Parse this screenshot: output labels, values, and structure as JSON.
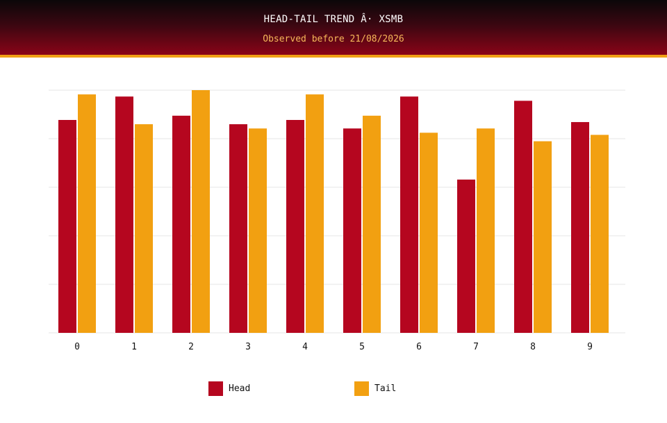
{
  "header": {
    "title": "HEAD-TAIL TREND Â· XSMB",
    "subtitle": "Observed before 21/08/2026"
  },
  "colors": {
    "head": "#b5061f",
    "tail": "#f2a011",
    "grid": "#e6e6e6",
    "header_accent": "#f0a014"
  },
  "chart_data": {
    "type": "bar",
    "categories": [
      "0",
      "1",
      "2",
      "3",
      "4",
      "5",
      "6",
      "7",
      "8",
      "9"
    ],
    "series": [
      {
        "name": "Head",
        "values": [
          20,
          22.2,
          20.4,
          19.6,
          20,
          19.2,
          22.2,
          14.4,
          21.8,
          19.8
        ]
      },
      {
        "name": "Tail",
        "values": [
          22.4,
          19.6,
          22.8,
          19.2,
          22.4,
          20.4,
          18.8,
          19.2,
          18,
          18.6
        ]
      }
    ],
    "ylim": [
      0,
      22.8
    ],
    "grid": true,
    "y_tick_labels_shown": false,
    "legend_position": "bottom"
  },
  "legend": {
    "head_label": "Head",
    "tail_label": "Tail"
  }
}
